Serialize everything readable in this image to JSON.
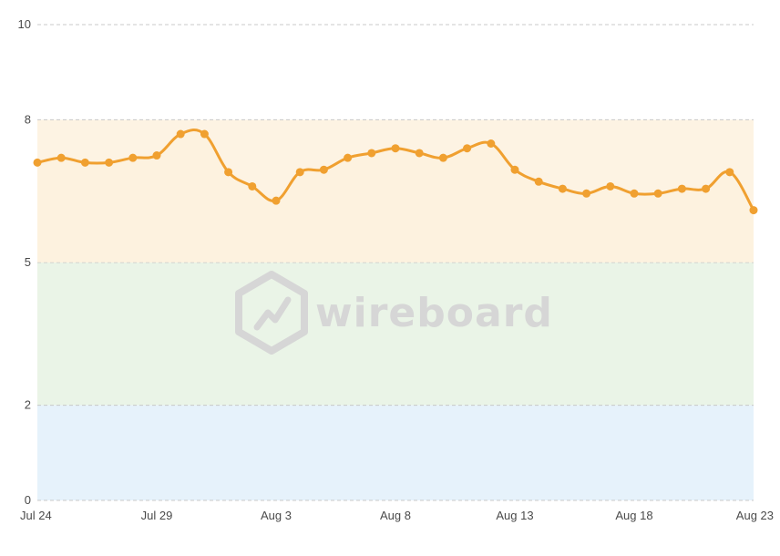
{
  "chart_data": {
    "type": "line",
    "x": [
      "Jul 24",
      "Jul 25",
      "Jul 26",
      "Jul 27",
      "Jul 28",
      "Jul 29",
      "Jul 30",
      "Jul 31",
      "Aug 1",
      "Aug 2",
      "Aug 3",
      "Aug 4",
      "Aug 5",
      "Aug 6",
      "Aug 7",
      "Aug 8",
      "Aug 9",
      "Aug 10",
      "Aug 11",
      "Aug 12",
      "Aug 13",
      "Aug 14",
      "Aug 15",
      "Aug 16",
      "Aug 17",
      "Aug 18",
      "Aug 19",
      "Aug 20",
      "Aug 21",
      "Aug 22",
      "Aug 23"
    ],
    "series": [
      {
        "values": [
          7.1,
          7.2,
          7.1,
          7.1,
          7.2,
          7.25,
          7.7,
          7.7,
          6.9,
          6.6,
          6.3,
          6.9,
          6.95,
          7.2,
          7.3,
          7.4,
          7.3,
          7.2,
          7.4,
          7.5,
          6.95,
          6.7,
          6.55,
          6.45,
          6.6,
          6.45,
          6.45,
          6.55,
          6.55,
          6.9,
          6.1
        ],
        "color": "#f0a030"
      }
    ],
    "xticks": [
      "Jul 24",
      "Jul 29",
      "Aug 3",
      "Aug 8",
      "Aug 13",
      "Aug 18",
      "Aug 23"
    ],
    "yticks": [
      "0",
      "2",
      "5",
      "8",
      "10"
    ],
    "ylim": [
      0,
      10
    ],
    "bands": [
      {
        "from": 5,
        "to": 8,
        "color": "#fdf3e3"
      },
      {
        "from": 2,
        "to": 5,
        "color": "#eaf4e7"
      },
      {
        "from": 0,
        "to": 2,
        "color": "#e6f2fb"
      }
    ],
    "grid": true,
    "xlabel": "",
    "ylabel": ""
  },
  "watermark": {
    "text": "wireboard",
    "color": "#d6d6d6"
  },
  "colors": {
    "line": "#f0a030",
    "grid": "#c8c8c8",
    "tick_text": "#4a4a4a"
  }
}
